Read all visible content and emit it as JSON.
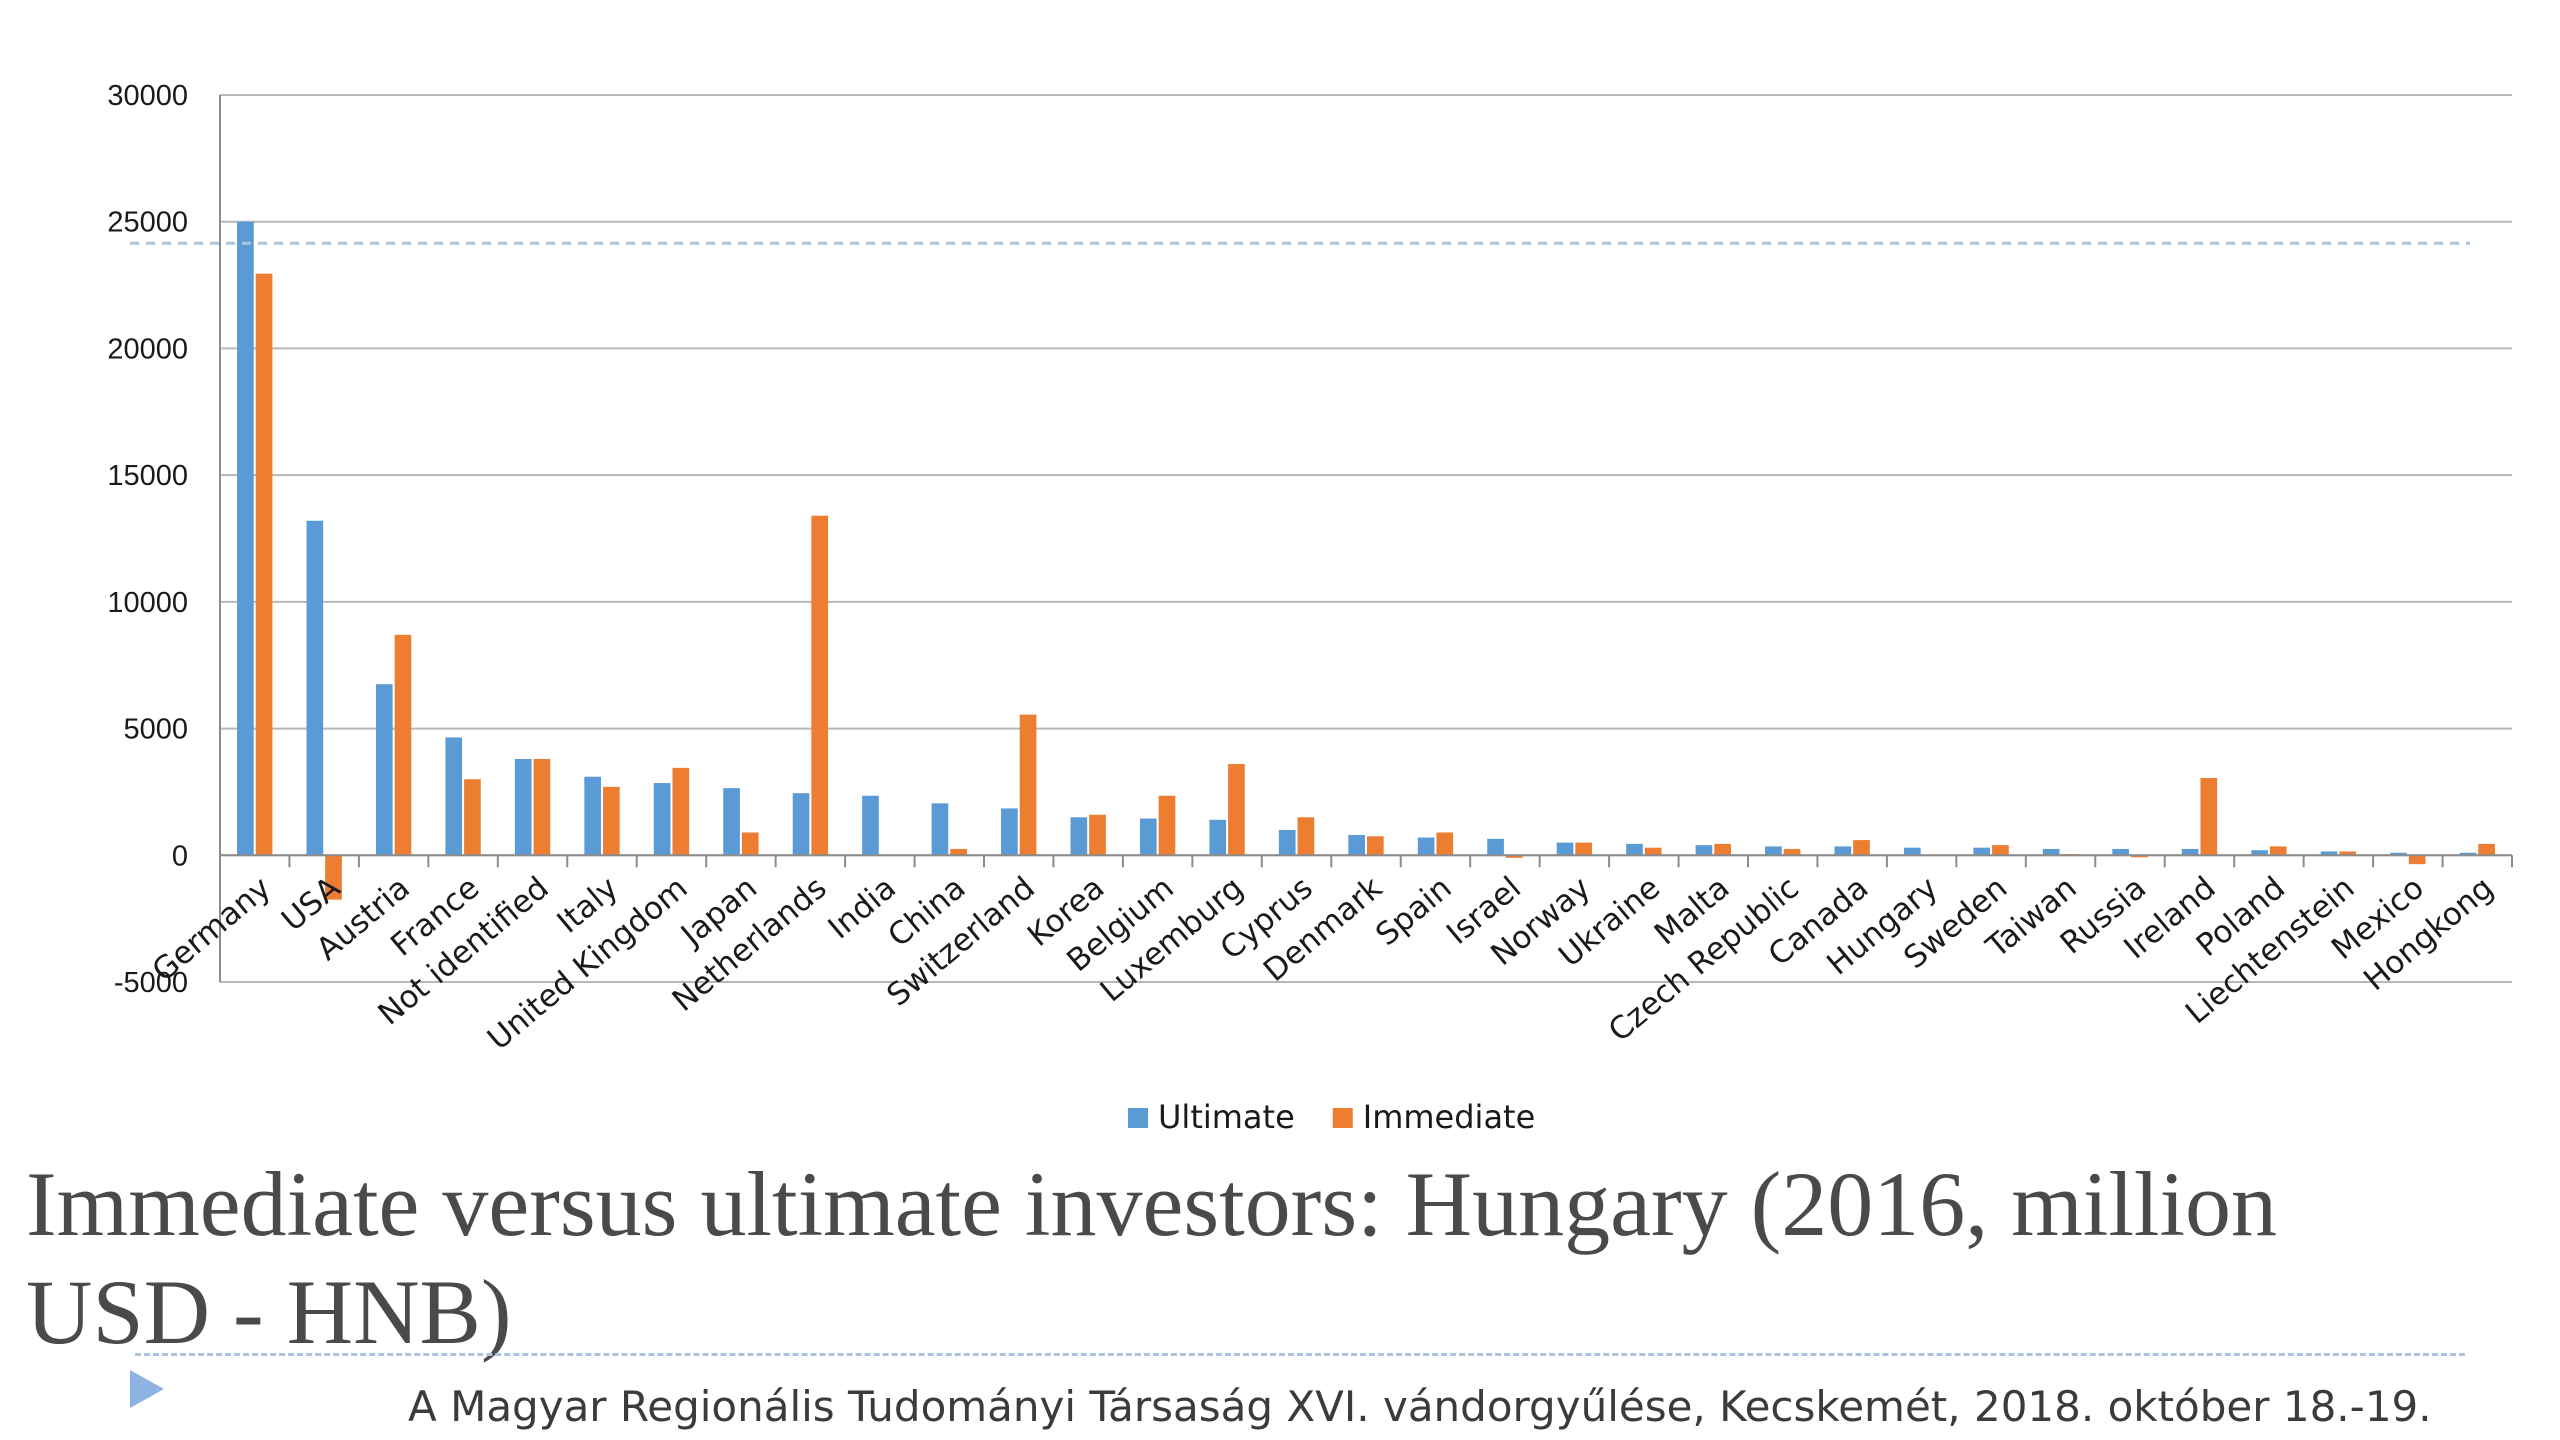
{
  "slide": {
    "title": "Immediate versus ultimate investors: Hungary (2016, million USD - HNB)",
    "footer": "A Magyar Regionális Tudományi Társaság XVI. vándorgyűlése, Kecskemét, 2018. október 18.-19."
  },
  "chart_data": {
    "type": "bar",
    "title": "",
    "xlabel": "",
    "ylabel": "",
    "ylim": [
      -5000,
      30000
    ],
    "yticks": [
      30000,
      25000,
      20000,
      15000,
      10000,
      5000,
      0,
      -5000
    ],
    "grid": true,
    "legend_position": "bottom",
    "categories": [
      "Germany",
      "USA",
      "Austria",
      "France",
      "Not identified",
      "Italy",
      "United Kingdom",
      "Japan",
      "Netherlands",
      "India",
      "China",
      "Switzerland",
      "Korea",
      "Belgium",
      "Luxemburg",
      "Cyprus",
      "Denmark",
      "Spain",
      "Israel",
      "Norway",
      "Ukraine",
      "Malta",
      "Czech Republic",
      "Canada",
      "Hungary",
      "Sweden",
      "Taiwan",
      "Russia",
      "Ireland",
      "Poland",
      "Liechtenstein",
      "Mexico",
      "Hongkong"
    ],
    "series": [
      {
        "name": "Ultimate",
        "color": "#5b9bd5",
        "values": [
          25000,
          13200,
          6750,
          4650,
          3800,
          3100,
          2850,
          2650,
          2450,
          2350,
          2050,
          1850,
          1500,
          1450,
          1400,
          1000,
          800,
          700,
          650,
          500,
          450,
          400,
          350,
          350,
          300,
          300,
          250,
          250,
          250,
          200,
          150,
          100,
          100
        ]
      },
      {
        "name": "Immediate",
        "color": "#ed7d31",
        "values": [
          22950,
          -1750,
          8700,
          3000,
          3800,
          2700,
          3450,
          900,
          13400,
          0,
          250,
          5550,
          1600,
          2350,
          3600,
          1500,
          750,
          900,
          -100,
          500,
          300,
          450,
          250,
          600,
          0,
          400,
          50,
          -50,
          3050,
          350,
          150,
          -350,
          450
        ]
      }
    ],
    "reference_line": {
      "value": 24150,
      "style": "dashed",
      "color": "#a9c4dc"
    }
  }
}
